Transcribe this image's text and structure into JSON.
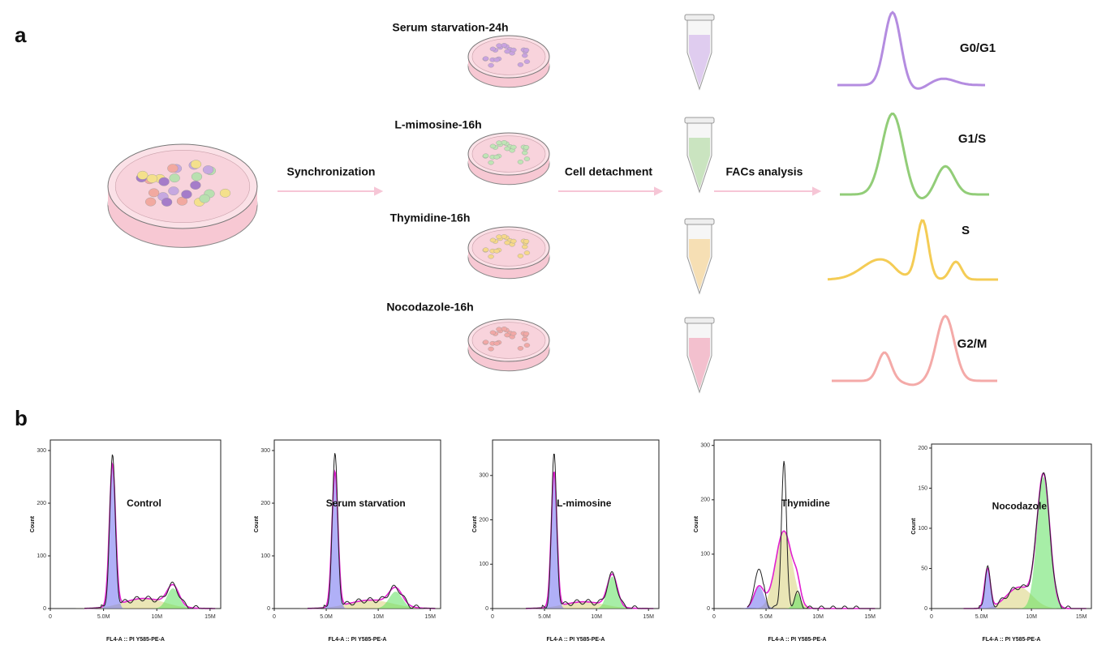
{
  "panel_a": {
    "label": "a",
    "treatments": [
      "Serum starvation-24h",
      "L-mimosine-16h",
      "Thymidine-16h",
      "Nocodazole-16h"
    ],
    "steps": [
      "Synchronization",
      "Cell detachment",
      "FACs analysis"
    ],
    "phases": [
      "G0/G1",
      "G1/S",
      "S",
      "G2/M"
    ]
  },
  "panel_b": {
    "label": "b",
    "charts": [
      {
        "name": "Control",
        "y_label": "Count",
        "x_label": "FL4-A :: PI Y585-PE-A",
        "xlim": [
          0,
          16000000
        ],
        "xticks": [
          0,
          {
            "value": 5000000,
            "label": "5.0M"
          },
          {
            "value": 10000000,
            "label": "10M"
          },
          {
            "value": 15000000,
            "label": "15M"
          }
        ],
        "ylim": [
          0,
          320
        ],
        "yticks": [
          0,
          100,
          200,
          300
        ]
      },
      {
        "name": "Serum starvation",
        "y_label": "Count",
        "x_label": "FL4-A :: PI Y585-PE-A",
        "xlim": [
          0,
          16000000
        ],
        "xticks": [
          0,
          {
            "value": 5000000,
            "label": "5.0M"
          },
          {
            "value": 10000000,
            "label": "10M"
          },
          {
            "value": 15000000,
            "label": "15M"
          }
        ],
        "ylim": [
          0,
          320
        ],
        "yticks": [
          0,
          100,
          200,
          300
        ]
      },
      {
        "name": "L-mimosine",
        "y_label": "Count",
        "x_label": "FL4-A :: PI Y585-PE-A",
        "xlim": [
          0,
          16000000
        ],
        "xticks": [
          0,
          {
            "value": 5000000,
            "label": "5.0M"
          },
          {
            "value": 10000000,
            "label": "10M"
          },
          {
            "value": 15000000,
            "label": "15M"
          }
        ],
        "ylim": [
          0,
          380
        ],
        "yticks": [
          0,
          100,
          200,
          300
        ]
      },
      {
        "name": "Thymidine",
        "y_label": "Count",
        "x_label": "FL4-A :: PI Y585-PE-A",
        "xlim": [
          0,
          16000000
        ],
        "xticks": [
          0,
          {
            "value": 5000000,
            "label": "5.0M"
          },
          {
            "value": 10000000,
            "label": "10M"
          },
          {
            "value": 15000000,
            "label": "15M"
          }
        ],
        "ylim": [
          0,
          310
        ],
        "yticks": [
          0,
          100,
          200,
          300
        ]
      },
      {
        "name": "Nocodazole",
        "y_label": "Count",
        "x_label": "FL4-A :: PI Y585-PE-A",
        "xlim": [
          0,
          16000000
        ],
        "xticks": [
          0,
          {
            "value": 5000000,
            "label": "5.0M"
          },
          {
            "value": 10000000,
            "label": "10M"
          },
          {
            "value": 15000000,
            "label": "15M"
          }
        ],
        "ylim": [
          0,
          205
        ],
        "yticks": [
          0,
          50,
          100,
          150,
          200
        ]
      }
    ]
  }
}
